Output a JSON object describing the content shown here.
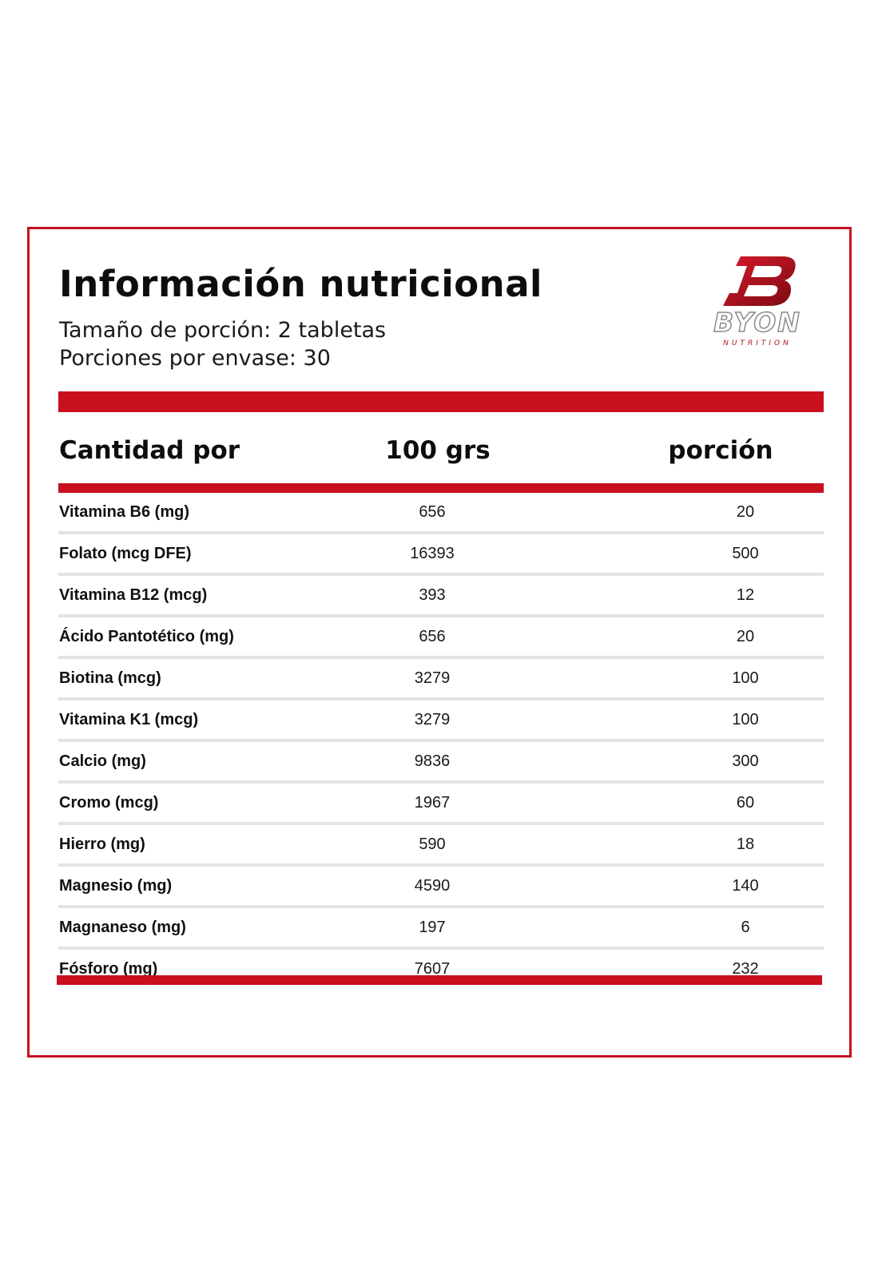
{
  "header": {
    "title": "Información nutricional",
    "serving_size": "Tamaño de porción: 2 tabletas",
    "servings_per_container": "Porciones por envase: 30"
  },
  "logo": {
    "name": "BYON",
    "tagline": "NUTRITION",
    "brand_color": "#b01020"
  },
  "colors": {
    "accent": "#c8101f",
    "divider": "#e3e3e3",
    "text": "#111111"
  },
  "table": {
    "columns": [
      "Cantidad por",
      "100 grs",
      "porción"
    ],
    "rows": [
      {
        "name": "Vitamina B6 (mg)",
        "per_100g": "656",
        "per_serving": "20"
      },
      {
        "name": "Folato (mcg DFE)",
        "per_100g": "16393",
        "per_serving": "500"
      },
      {
        "name": "Vitamina B12 (mcg)",
        "per_100g": "393",
        "per_serving": "12"
      },
      {
        "name": "Ácido Pantotético (mg)",
        "per_100g": "656",
        "per_serving": "20"
      },
      {
        "name": "Biotina (mcg)",
        "per_100g": "3279",
        "per_serving": "100"
      },
      {
        "name": "Vitamina K1 (mcg)",
        "per_100g": "3279",
        "per_serving": "100"
      },
      {
        "name": "Calcio (mg)",
        "per_100g": "9836",
        "per_serving": "300"
      },
      {
        "name": "Cromo (mcg)",
        "per_100g": "1967",
        "per_serving": "60"
      },
      {
        "name": "Hierro (mg)",
        "per_100g": "590",
        "per_serving": "18"
      },
      {
        "name": "Magnesio (mg)",
        "per_100g": "4590",
        "per_serving": "140"
      },
      {
        "name": "Magnaneso (mg)",
        "per_100g": "197",
        "per_serving": "6"
      },
      {
        "name": "Fósforo (mg)",
        "per_100g": "7607",
        "per_serving": "232"
      }
    ]
  }
}
